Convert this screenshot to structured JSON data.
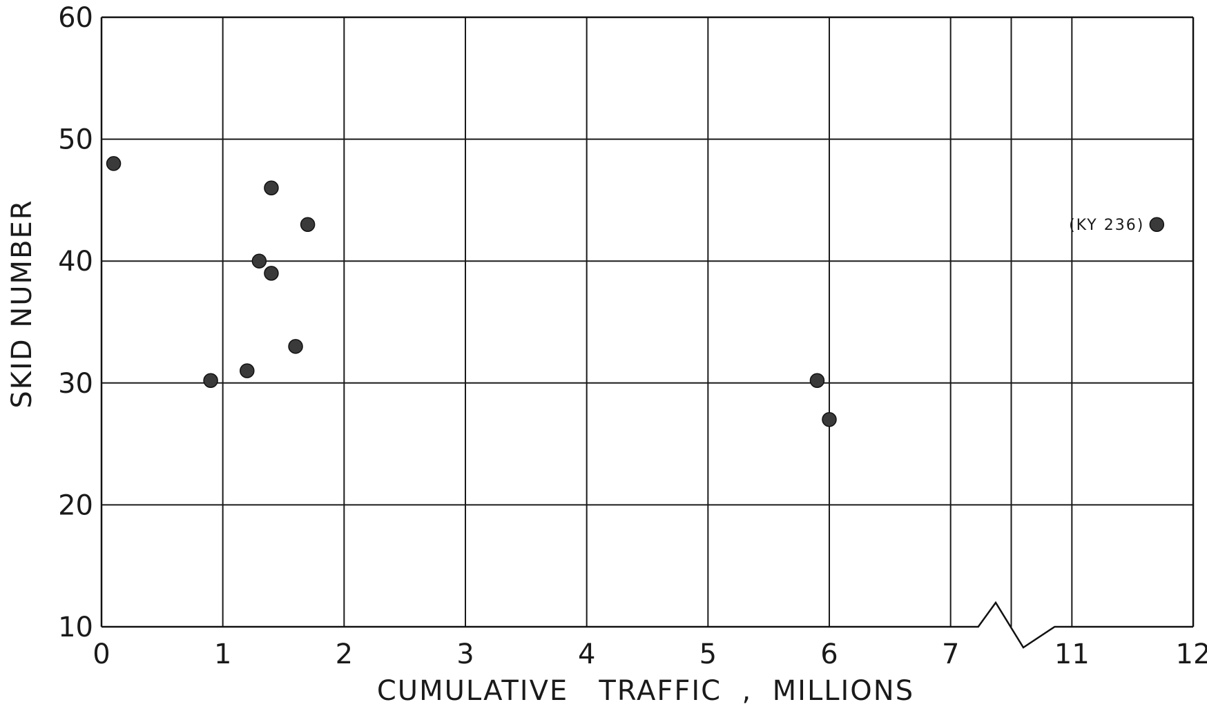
{
  "chart_data": {
    "type": "scatter",
    "title": "",
    "xlabel": "CUMULATIVE   TRAFFIC  ,  MILLIONS",
    "ylabel": "SKID NUMBER",
    "xlim": [
      0,
      12
    ],
    "ylim": [
      10,
      60
    ],
    "x_axis_break": {
      "between": [
        7,
        11
      ]
    },
    "x_ticks": [
      0,
      1,
      2,
      3,
      4,
      5,
      6,
      7,
      11,
      12
    ],
    "x_tick_labels": [
      "0",
      "1",
      "2",
      "3",
      "4",
      "5",
      "6",
      "7",
      "11",
      "12"
    ],
    "y_ticks": [
      10,
      20,
      30,
      40,
      50,
      60
    ],
    "y_tick_labels": [
      "10",
      "20",
      "30",
      "40",
      "50",
      "60"
    ],
    "grid": true,
    "series": [
      {
        "color": "#3a3a3a",
        "points": [
          {
            "x": 0.1,
            "y": 48
          },
          {
            "x": 0.9,
            "y": 30.2
          },
          {
            "x": 1.2,
            "y": 31
          },
          {
            "x": 1.3,
            "y": 40
          },
          {
            "x": 1.4,
            "y": 39
          },
          {
            "x": 1.4,
            "y": 46
          },
          {
            "x": 1.6,
            "y": 33
          },
          {
            "x": 1.7,
            "y": 43
          },
          {
            "x": 5.9,
            "y": 30.2
          },
          {
            "x": 6.0,
            "y": 27
          },
          {
            "x": 11.7,
            "y": 43,
            "label": "(KY 236)"
          }
        ]
      }
    ]
  }
}
